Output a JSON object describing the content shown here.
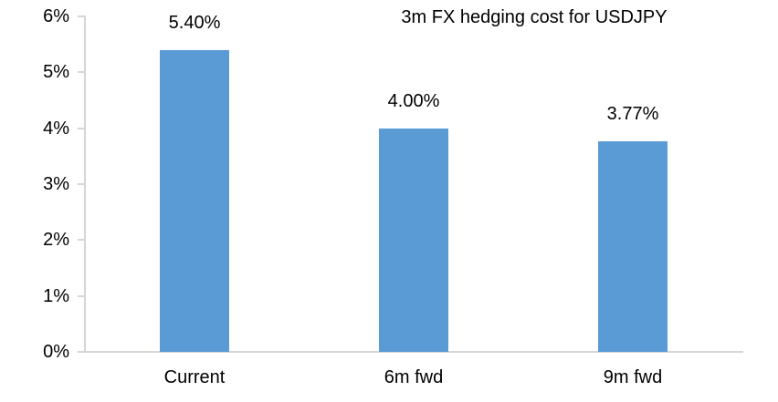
{
  "chart_data": {
    "type": "bar",
    "title": "3m FX hedging cost for USDJPY",
    "categories": [
      "Current",
      "6m fwd",
      "9m fwd"
    ],
    "values": [
      5.4,
      4.0,
      3.77
    ],
    "data_labels": [
      "5.40%",
      "4.00%",
      "3.77%"
    ],
    "y_ticks": [
      "0%",
      "1%",
      "2%",
      "3%",
      "4%",
      "5%",
      "6%"
    ],
    "ylim": [
      0,
      6
    ],
    "xlabel": "",
    "ylabel": "",
    "grid": "off",
    "legend": "none",
    "bar_color": "#5b9bd5",
    "axis_color": "#d6d6d6",
    "text_color": "#000000"
  }
}
